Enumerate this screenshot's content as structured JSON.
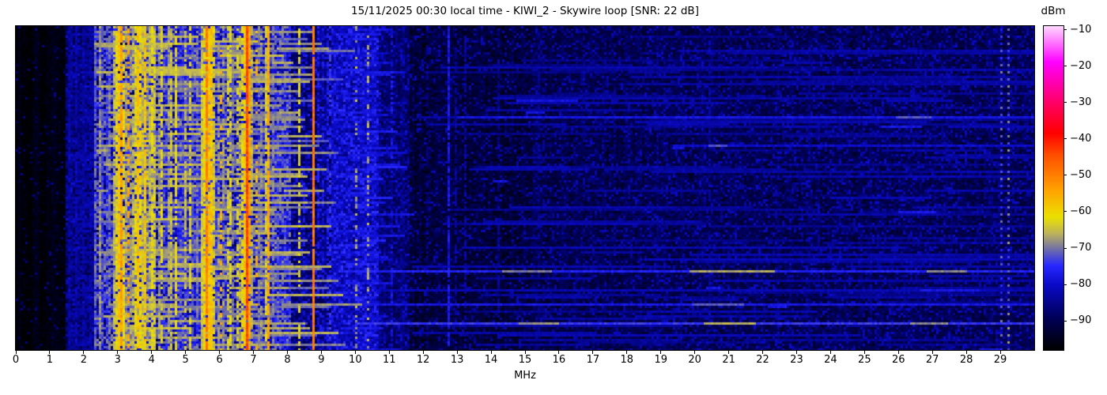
{
  "figure": {
    "title": "15/11/2025 00:30 local time - KIWI_2 - Skywire loop [SNR: 22 dB]",
    "xlabel": "MHz",
    "colorbar": {
      "label": "dBm"
    }
  },
  "chart_data": {
    "type": "heatmap",
    "title": "15/11/2025 00:30 local time - KIWI_2 - Skywire loop [SNR: 22 dB]",
    "xlabel": "MHz",
    "ylabel": "",
    "x_range": [
      0,
      30
    ],
    "x_ticks": [
      0,
      1,
      2,
      3,
      4,
      5,
      6,
      7,
      8,
      9,
      10,
      11,
      12,
      13,
      14,
      15,
      16,
      17,
      18,
      19,
      20,
      21,
      22,
      23,
      24,
      25,
      26,
      27,
      28,
      29
    ],
    "colorbar": {
      "label": "dBm",
      "range": [
        -98,
        -9
      ],
      "ticks": [
        -10,
        -20,
        -30,
        -40,
        -50,
        -60,
        -70,
        -80,
        -90
      ],
      "tick_labels": [
        "−10",
        "−20",
        "−30",
        "−40",
        "−50",
        "−60",
        "−70",
        "−80",
        "−90"
      ]
    },
    "colormap_stops": [
      [
        0.0,
        0,
        0,
        0
      ],
      [
        0.1,
        0,
        0,
        90
      ],
      [
        0.2,
        10,
        10,
        200
      ],
      [
        0.26,
        40,
        40,
        255
      ],
      [
        0.31,
        110,
        110,
        170
      ],
      [
        0.36,
        190,
        180,
        90
      ],
      [
        0.41,
        235,
        225,
        0
      ],
      [
        0.49,
        255,
        165,
        0
      ],
      [
        0.6,
        255,
        80,
        0
      ],
      [
        0.67,
        255,
        0,
        0
      ],
      [
        0.78,
        255,
        0,
        120
      ],
      [
        0.89,
        255,
        0,
        255
      ],
      [
        1.0,
        255,
        215,
        255
      ]
    ],
    "seed": 1315,
    "noise_bands": [
      {
        "f0": 0.0,
        "f1": 1.45,
        "base": -96.5,
        "var": 1.5,
        "sp_p": 0.05,
        "sp_lv": -88
      },
      {
        "f0": 1.45,
        "f1": 2.3,
        "base": -88,
        "var": 4,
        "sp_p": 0.3,
        "sp_lv": -83
      },
      {
        "f0": 2.3,
        "f1": 3.55,
        "base": -82,
        "var": 6,
        "sp_p": 0.5,
        "sp_lv": -72
      },
      {
        "f0": 3.55,
        "f1": 4.15,
        "base": -77,
        "var": 6,
        "sp_p": 0.55,
        "sp_lv": -67
      },
      {
        "f0": 4.15,
        "f1": 4.72,
        "base": -83,
        "var": 5,
        "sp_p": 0.45,
        "sp_lv": -73
      },
      {
        "f0": 4.72,
        "f1": 5.42,
        "base": -80,
        "var": 5,
        "sp_p": 0.5,
        "sp_lv": -73
      },
      {
        "f0": 5.42,
        "f1": 5.82,
        "base": -75,
        "var": 5,
        "sp_p": 0.55,
        "sp_lv": -66
      },
      {
        "f0": 5.82,
        "f1": 8.12,
        "base": -82,
        "var": 5,
        "sp_p": 0.45,
        "sp_lv": -72
      },
      {
        "f0": 8.12,
        "f1": 9.3,
        "base": -87,
        "var": 4,
        "sp_p": 0.3,
        "sp_lv": -80
      },
      {
        "f0": 9.3,
        "f1": 10.7,
        "base": -83,
        "var": 3.5,
        "sp_p": 0.5,
        "sp_lv": -78
      },
      {
        "f0": 10.7,
        "f1": 11.6,
        "base": -88,
        "var": 3,
        "sp_p": 0.3,
        "sp_lv": -83
      },
      {
        "f0": 11.6,
        "f1": 15.2,
        "base": -92.5,
        "var": 3,
        "sp_p": 0.18,
        "sp_lv": -85
      },
      {
        "f0": 15.2,
        "f1": 18.5,
        "base": -91,
        "var": 3,
        "sp_p": 0.25,
        "sp_lv": -85
      },
      {
        "f0": 18.5,
        "f1": 30.0,
        "base": -90.5,
        "var": 3,
        "sp_p": 0.28,
        "sp_lv": -84
      }
    ],
    "carriers": [
      [
        1.52,
        -84,
        0.85
      ],
      [
        1.63,
        -86,
        0.8
      ],
      [
        1.73,
        -83,
        0.85
      ],
      [
        1.84,
        -86,
        0.8
      ],
      [
        1.94,
        -84,
        0.85
      ],
      [
        2.04,
        -85,
        0.8
      ],
      [
        2.14,
        -83,
        0.85
      ],
      [
        2.24,
        -85,
        0.8
      ],
      [
        2.33,
        -72,
        0.8
      ],
      [
        2.43,
        -68,
        0.8
      ],
      [
        2.53,
        -74,
        0.7
      ],
      [
        2.63,
        -76,
        0.7
      ],
      [
        2.73,
        -70,
        0.75
      ],
      [
        2.83,
        -66,
        0.8
      ],
      [
        2.91,
        -63,
        0.85
      ],
      [
        2.98,
        -58,
        0.9
      ],
      [
        3.04,
        -54,
        0.85
      ],
      [
        3.11,
        -62,
        0.8
      ],
      [
        3.18,
        -67,
        0.7
      ],
      [
        3.26,
        -55,
        0.5
      ],
      [
        3.34,
        -68,
        0.7
      ],
      [
        3.41,
        -66,
        0.75
      ],
      [
        3.5,
        -63,
        0.8
      ],
      [
        3.57,
        -58,
        0.85
      ],
      [
        3.64,
        -60,
        0.8
      ],
      [
        3.72,
        -65,
        0.7
      ],
      [
        3.8,
        -58,
        0.8
      ],
      [
        3.88,
        -66,
        0.7
      ],
      [
        3.95,
        -62,
        0.75
      ],
      [
        4.05,
        -64,
        0.7
      ],
      [
        4.16,
        -68,
        0.7
      ],
      [
        4.26,
        -63,
        0.7
      ],
      [
        4.36,
        -74,
        0.6
      ],
      [
        4.46,
        -67,
        0.7
      ],
      [
        4.53,
        -65,
        0.75
      ],
      [
        4.66,
        -62,
        0.8
      ],
      [
        4.76,
        -78,
        0.6
      ],
      [
        4.86,
        -75,
        0.6
      ],
      [
        4.96,
        -65,
        0.6
      ],
      [
        5.06,
        -63,
        0.6
      ],
      [
        5.18,
        -72,
        0.6
      ],
      [
        5.3,
        -70,
        0.6
      ],
      [
        5.41,
        -64,
        0.7
      ],
      [
        5.48,
        -61,
        0.8
      ],
      [
        5.56,
        -52,
        0.9
      ],
      [
        5.61,
        -50,
        0.9
      ],
      [
        5.67,
        -58,
        0.85
      ],
      [
        5.74,
        -58,
        0.9
      ],
      [
        5.82,
        -64,
        0.8
      ],
      [
        5.9,
        -68,
        0.7
      ],
      [
        5.97,
        -66,
        0.7
      ],
      [
        6.02,
        -56,
        0.3
      ],
      [
        6.1,
        -68,
        0.6
      ],
      [
        6.18,
        -64,
        0.6
      ],
      [
        6.26,
        -63,
        0.6
      ],
      [
        6.36,
        -70,
        0.6
      ],
      [
        6.46,
        -63,
        0.55
      ],
      [
        6.56,
        -66,
        0.6
      ],
      [
        6.64,
        -62,
        0.7
      ],
      [
        6.71,
        -58,
        0.85
      ],
      [
        6.78,
        -44,
        0.97,
        2
      ],
      [
        6.86,
        -54,
        0.9
      ],
      [
        6.94,
        -66,
        0.7
      ],
      [
        7.02,
        -56,
        0.3
      ],
      [
        7.1,
        -70,
        0.6
      ],
      [
        7.21,
        -68,
        0.6
      ],
      [
        7.33,
        -64,
        0.7
      ],
      [
        7.4,
        -55,
        0.9
      ],
      [
        7.52,
        -70,
        0.6
      ],
      [
        7.64,
        -74,
        0.5
      ],
      [
        7.77,
        -78,
        0.5
      ],
      [
        7.92,
        -79,
        0.5
      ],
      [
        8.02,
        -76,
        0.5
      ],
      [
        8.31,
        -63,
        0.55
      ],
      [
        8.47,
        -78,
        0.4
      ],
      [
        8.74,
        -49,
        0.93
      ],
      [
        8.87,
        -77,
        0.45
      ],
      [
        9.02,
        -79,
        0.5
      ],
      [
        9.12,
        -77,
        0.5
      ],
      [
        9.22,
        -75,
        0.5
      ],
      [
        9.32,
        -79,
        0.5
      ],
      [
        10.01,
        -67,
        0.3
      ],
      [
        10.36,
        -67,
        0.35
      ],
      [
        11.02,
        -78,
        0.35
      ],
      [
        12.06,
        -87,
        0.5
      ],
      [
        12.71,
        -78,
        0.85
      ],
      [
        12.92,
        -85,
        0.5
      ],
      [
        13.22,
        -84,
        0.6
      ],
      [
        14.13,
        -85,
        0.55
      ],
      [
        15.36,
        -86,
        0.5
      ],
      [
        15.52,
        -86,
        0.45
      ],
      [
        16.7,
        -87,
        0.45
      ],
      [
        17.56,
        -87,
        0.45
      ],
      [
        18.82,
        -86,
        0.5
      ],
      [
        20.36,
        -85,
        0.55
      ],
      [
        21.12,
        -87,
        0.45
      ],
      [
        22.42,
        -88,
        0.4
      ],
      [
        23.32,
        -87,
        0.45
      ],
      [
        25.12,
        -88,
        0.4
      ],
      [
        26.42,
        -88,
        0.4
      ],
      [
        27.22,
        -87,
        0.45
      ],
      [
        28.96,
        -73,
        0.33,
        1,
        1
      ],
      [
        29.18,
        -71,
        0.33,
        1,
        1
      ]
    ],
    "streaks": [
      {
        "row": 10,
        "f0": 19.5,
        "f1": 30,
        "level": -83
      },
      {
        "row": 24,
        "f0": 18.0,
        "f1": 30,
        "level": -84
      },
      {
        "row": 38,
        "f0": 13.0,
        "f1": 30,
        "level": -78,
        "segs": [
          [
            25.9,
            26.9,
            -72
          ]
        ]
      },
      {
        "row": 50,
        "f0": 19.3,
        "f1": 30,
        "level": -80,
        "segs": [
          [
            20.4,
            20.9,
            -72
          ]
        ]
      },
      {
        "row": 98,
        "f0": 18.5,
        "f1": 30,
        "level": -82
      },
      {
        "row": 103,
        "f0": 9.5,
        "f1": 30,
        "level": -76,
        "segs": [
          [
            14.3,
            15.8,
            -70
          ],
          [
            19.8,
            22.3,
            -67
          ],
          [
            26.8,
            28.0,
            -69
          ]
        ]
      },
      {
        "row": 107,
        "f0": 20.5,
        "f1": 30,
        "level": -83
      },
      {
        "row": 111,
        "f0": 9.5,
        "f1": 30,
        "level": -82
      },
      {
        "row": 117,
        "f0": 9.5,
        "f1": 30,
        "level": -78,
        "segs": [
          [
            19.9,
            21.4,
            -72
          ]
        ]
      },
      {
        "row": 125,
        "f0": 10.0,
        "f1": 30,
        "level": -74,
        "segs": [
          [
            14.8,
            16.0,
            -68
          ],
          [
            20.2,
            21.8,
            -66
          ],
          [
            26.3,
            27.4,
            -69
          ]
        ]
      }
    ]
  }
}
